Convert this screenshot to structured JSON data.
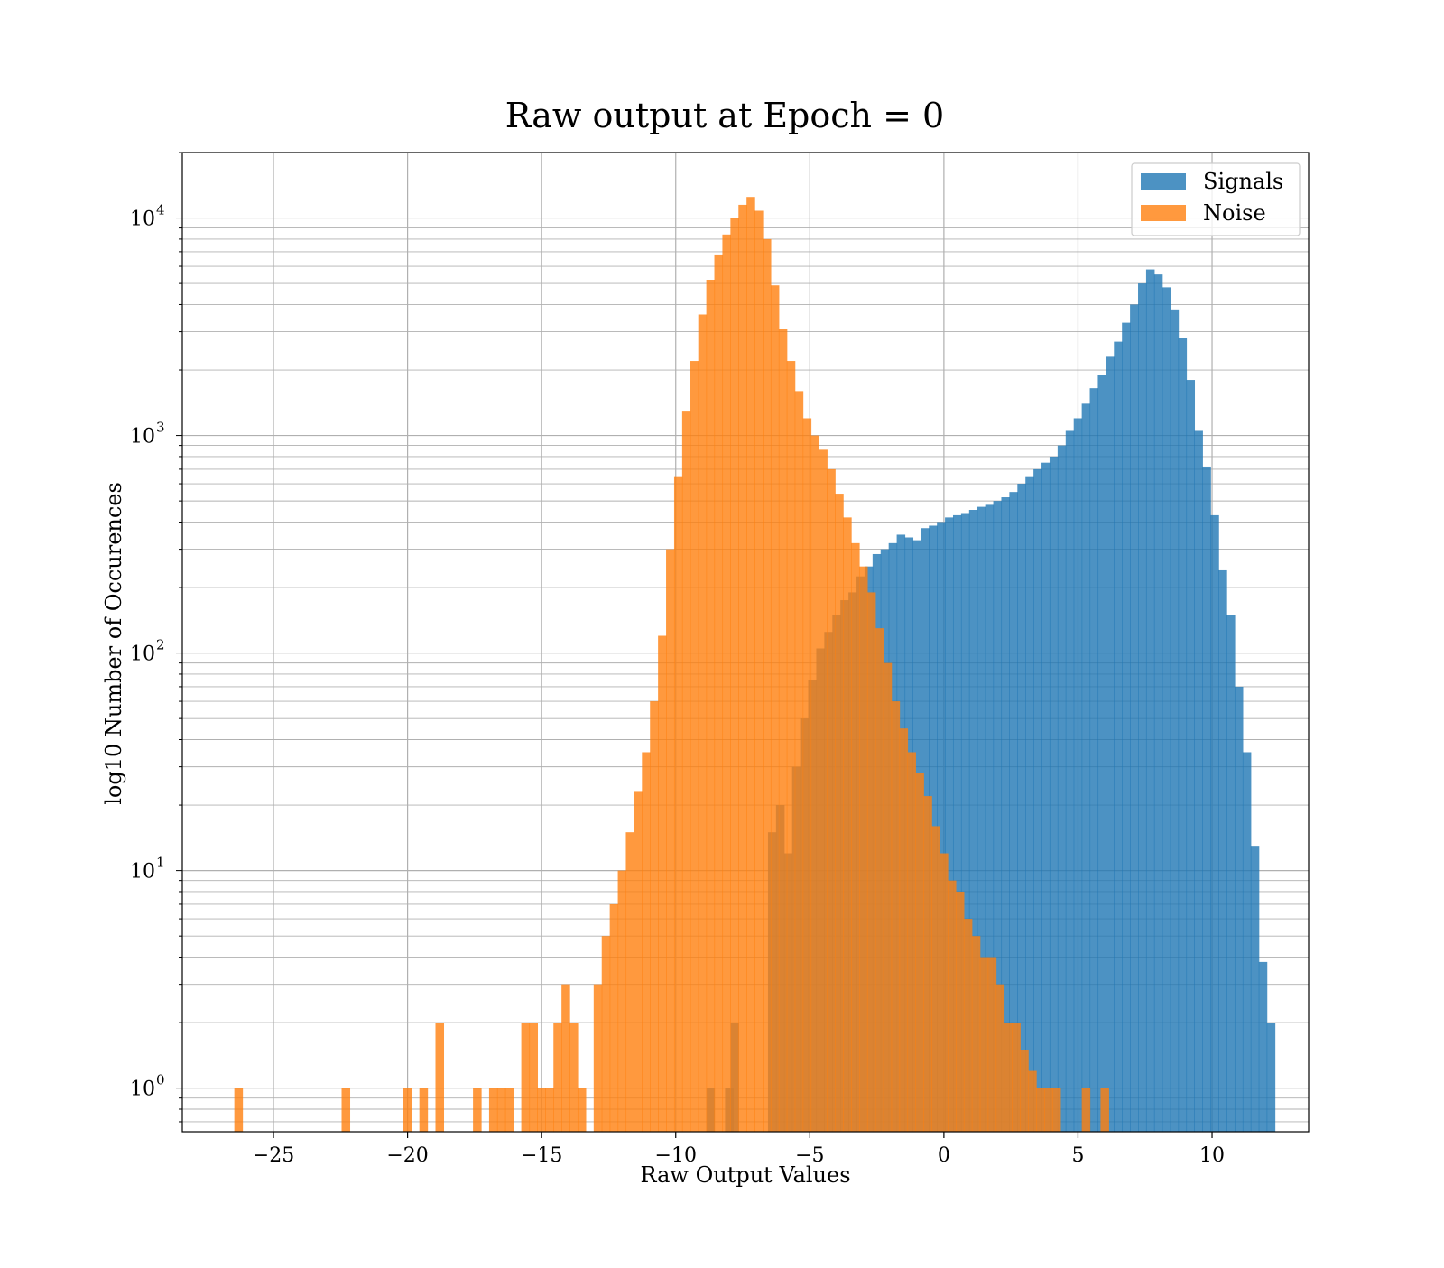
{
  "chart_data": {
    "type": "bar",
    "title": "Raw output at Epoch = 0",
    "xlabel": "Raw Output Values",
    "ylabel": "log10 Number of Occurences",
    "xlim": [
      -28.4,
      13.6
    ],
    "ylim": [
      0.63,
      20000
    ],
    "yscale": "log",
    "grid": true,
    "legend_position": "top-right",
    "x_ticks": [
      -25,
      -20,
      -15,
      -10,
      -5,
      0,
      5,
      10
    ],
    "x_tick_labels": [
      "−25",
      "−20",
      "−15",
      "−10",
      "−5",
      "0",
      "5",
      "10"
    ],
    "y_ticks": [
      1,
      10,
      100,
      1000,
      10000
    ],
    "y_tick_labels": [
      "10",
      "10",
      "10",
      "10",
      "10"
    ],
    "y_tick_exponents": [
      "0",
      "1",
      "2",
      "3",
      "4"
    ],
    "series": [
      {
        "name": "Signals",
        "color": "#1f77b4",
        "opacity": 0.8,
        "bin_width": 0.32,
        "bins": [
          [
            -8.7,
            1
          ],
          [
            -8.0,
            1
          ],
          [
            -7.8,
            2
          ],
          [
            -6.4,
            15
          ],
          [
            -6.1,
            20
          ],
          [
            -5.8,
            12
          ],
          [
            -5.5,
            30
          ],
          [
            -5.2,
            50
          ],
          [
            -4.9,
            75
          ],
          [
            -4.6,
            105
          ],
          [
            -4.3,
            125
          ],
          [
            -4.0,
            150
          ],
          [
            -3.7,
            175
          ],
          [
            -3.4,
            190
          ],
          [
            -3.1,
            225
          ],
          [
            -2.8,
            250
          ],
          [
            -2.5,
            285
          ],
          [
            -2.2,
            300
          ],
          [
            -1.9,
            320
          ],
          [
            -1.6,
            350
          ],
          [
            -1.3,
            340
          ],
          [
            -1.0,
            330
          ],
          [
            -0.7,
            375
          ],
          [
            -0.4,
            385
          ],
          [
            -0.1,
            400
          ],
          [
            0.2,
            420
          ],
          [
            0.5,
            430
          ],
          [
            0.8,
            440
          ],
          [
            1.1,
            455
          ],
          [
            1.4,
            470
          ],
          [
            1.7,
            480
          ],
          [
            2.0,
            500
          ],
          [
            2.3,
            520
          ],
          [
            2.6,
            550
          ],
          [
            2.9,
            600
          ],
          [
            3.2,
            650
          ],
          [
            3.5,
            700
          ],
          [
            3.8,
            750
          ],
          [
            4.1,
            800
          ],
          [
            4.4,
            900
          ],
          [
            4.7,
            1050
          ],
          [
            5.0,
            1200
          ],
          [
            5.3,
            1400
          ],
          [
            5.6,
            1650
          ],
          [
            5.9,
            1900
          ],
          [
            6.2,
            2300
          ],
          [
            6.5,
            2700
          ],
          [
            6.8,
            3300
          ],
          [
            7.1,
            4000
          ],
          [
            7.4,
            5000
          ],
          [
            7.7,
            5800
          ],
          [
            8.0,
            5500
          ],
          [
            8.3,
            4800
          ],
          [
            8.6,
            3800
          ],
          [
            8.9,
            2800
          ],
          [
            9.2,
            1800
          ],
          [
            9.5,
            1050
          ],
          [
            9.8,
            720
          ],
          [
            10.1,
            430
          ],
          [
            10.4,
            240
          ],
          [
            10.7,
            150
          ],
          [
            11.0,
            70
          ],
          [
            11.3,
            35
          ],
          [
            11.6,
            13
          ],
          [
            11.9,
            3.8
          ],
          [
            12.2,
            2
          ]
        ]
      },
      {
        "name": "Noise",
        "color": "#ff7f0e",
        "opacity": 0.8,
        "bin_width": 0.32,
        "bins": [
          [
            -26.3,
            1
          ],
          [
            -22.3,
            1
          ],
          [
            -20.0,
            1
          ],
          [
            -19.4,
            1
          ],
          [
            -18.8,
            2
          ],
          [
            -17.4,
            1
          ],
          [
            -16.8,
            1
          ],
          [
            -16.5,
            1
          ],
          [
            -16.2,
            1
          ],
          [
            -15.6,
            2
          ],
          [
            -15.3,
            2
          ],
          [
            -15.0,
            1
          ],
          [
            -14.7,
            1
          ],
          [
            -14.4,
            2
          ],
          [
            -14.1,
            3
          ],
          [
            -13.8,
            2
          ],
          [
            -13.5,
            1
          ],
          [
            -12.9,
            3
          ],
          [
            -12.6,
            5
          ],
          [
            -12.3,
            7
          ],
          [
            -12.0,
            10
          ],
          [
            -11.7,
            15
          ],
          [
            -11.4,
            23
          ],
          [
            -11.1,
            35
          ],
          [
            -10.8,
            60
          ],
          [
            -10.5,
            120
          ],
          [
            -10.2,
            300
          ],
          [
            -9.9,
            650
          ],
          [
            -9.6,
            1300
          ],
          [
            -9.3,
            2200
          ],
          [
            -9.0,
            3600
          ],
          [
            -8.7,
            5200
          ],
          [
            -8.4,
            6800
          ],
          [
            -8.1,
            8400
          ],
          [
            -7.8,
            10000
          ],
          [
            -7.5,
            11500
          ],
          [
            -7.2,
            12500
          ],
          [
            -6.9,
            10800
          ],
          [
            -6.6,
            8000
          ],
          [
            -6.3,
            4900
          ],
          [
            -6.0,
            3100
          ],
          [
            -5.7,
            2200
          ],
          [
            -5.4,
            1600
          ],
          [
            -5.1,
            1200
          ],
          [
            -4.8,
            1000
          ],
          [
            -4.5,
            860
          ],
          [
            -4.2,
            700
          ],
          [
            -3.9,
            540
          ],
          [
            -3.6,
            420
          ],
          [
            -3.3,
            320
          ],
          [
            -3.0,
            250
          ],
          [
            -2.7,
            190
          ],
          [
            -2.4,
            130
          ],
          [
            -2.1,
            90
          ],
          [
            -1.8,
            60
          ],
          [
            -1.5,
            45
          ],
          [
            -1.2,
            35
          ],
          [
            -0.9,
            28
          ],
          [
            -0.6,
            22
          ],
          [
            -0.3,
            16
          ],
          [
            0.0,
            12
          ],
          [
            0.3,
            9
          ],
          [
            0.6,
            8
          ],
          [
            0.9,
            6
          ],
          [
            1.2,
            5
          ],
          [
            1.5,
            4
          ],
          [
            1.8,
            4
          ],
          [
            2.1,
            3
          ],
          [
            2.4,
            2
          ],
          [
            2.7,
            2
          ],
          [
            3.0,
            1.5
          ],
          [
            3.3,
            1.2
          ],
          [
            3.6,
            1
          ],
          [
            3.9,
            1
          ],
          [
            4.2,
            1
          ],
          [
            5.3,
            1
          ],
          [
            6.0,
            1
          ]
        ]
      }
    ]
  }
}
